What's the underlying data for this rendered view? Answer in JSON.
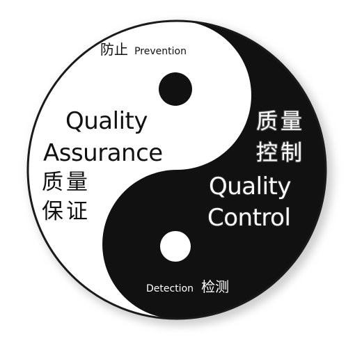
{
  "colors": {
    "yin": "#111111",
    "yang": "#ffffff",
    "rim": "#1a1a1a",
    "shadow": "#c8c8c8"
  },
  "prevention": {
    "zh": "防止",
    "en": "Prevention"
  },
  "assurance": {
    "line1": "Quality",
    "line2": "Assurance",
    "zh_line1": "质量",
    "zh_line2": "保证"
  },
  "control": {
    "line1": "Quality",
    "line2": "Control",
    "zh_line1": "质量",
    "zh_line2": "控制"
  },
  "detection": {
    "en": "Detection",
    "zh": "检测"
  }
}
